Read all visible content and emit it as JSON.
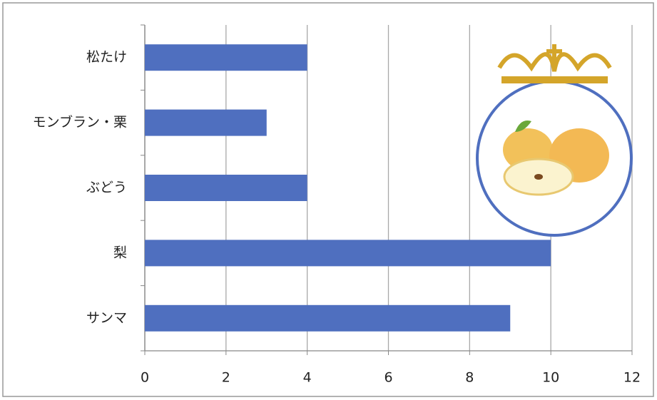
{
  "chart_data": {
    "type": "bar",
    "orientation": "horizontal",
    "categories": [
      "松たけ",
      "モンブラン・栗",
      "ぶどう",
      "梨",
      "サンマ"
    ],
    "values": [
      4,
      3,
      4,
      10,
      9
    ],
    "color": "#4f6fbf",
    "xlim": [
      0,
      12
    ],
    "xticks": [
      0,
      2,
      4,
      6,
      8,
      10,
      12
    ],
    "grid": true
  }
}
